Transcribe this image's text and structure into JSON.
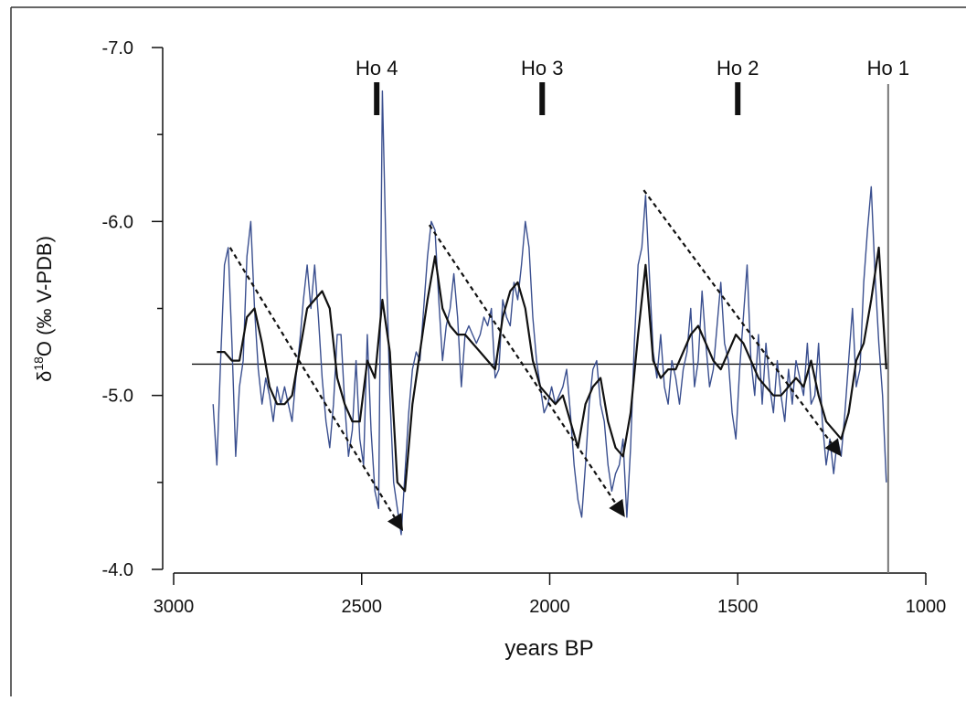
{
  "chart_data": {
    "type": "line",
    "xlabel": "years BP",
    "ylabel": "δ18O (‰ V-PDB)",
    "ylabel_parts": {
      "delta": "δ",
      "superscript": "18",
      "rest": "O (‰ V-PDB)"
    },
    "xlim": [
      3000,
      1000
    ],
    "ylim": [
      -4.0,
      -7.0
    ],
    "y_reversed": true,
    "x_ticks": [
      3000,
      2500,
      2000,
      1500,
      1000
    ],
    "x_tick_labels": [
      "3000",
      "2500",
      "2000",
      "1500",
      "1000"
    ],
    "y_ticks": [
      -4.0,
      -5.0,
      -6.0,
      -7.0
    ],
    "y_tick_labels": [
      "-4.0",
      "-5.0",
      "-6.0",
      "-7.0"
    ],
    "y_minor_ticks": [
      -4.5,
      -5.5,
      -6.5
    ],
    "grid": false,
    "legend": "none",
    "reference_line": {
      "y": -5.18
    },
    "events": [
      {
        "label": "Ho 4",
        "x": 2460
      },
      {
        "label": "Ho 3",
        "x": 2020
      },
      {
        "label": "Ho 2",
        "x": 1500
      },
      {
        "label": "Ho 1",
        "x": 1100
      }
    ],
    "trend_arrows": [
      {
        "x1": 2850,
        "y1": -5.85,
        "x2": 2390,
        "y2": -4.22
      },
      {
        "x1": 2320,
        "y1": -5.98,
        "x2": 1800,
        "y2": -4.3
      },
      {
        "x1": 1750,
        "y1": -6.18,
        "x2": 1225,
        "y2": -4.65
      }
    ],
    "series": [
      {
        "color": "#3a4f8f",
        "x": [
          2895,
          2885,
          2875,
          2865,
          2855,
          2845,
          2835,
          2825,
          2815,
          2805,
          2795,
          2785,
          2775,
          2765,
          2755,
          2745,
          2735,
          2725,
          2715,
          2705,
          2695,
          2685,
          2675,
          2665,
          2655,
          2645,
          2635,
          2625,
          2615,
          2605,
          2595,
          2585,
          2575,
          2565,
          2555,
          2545,
          2535,
          2525,
          2515,
          2505,
          2495,
          2485,
          2475,
          2465,
          2455,
          2445,
          2435,
          2425,
          2415,
          2405,
          2395,
          2385,
          2375,
          2365,
          2355,
          2345,
          2335,
          2325,
          2315,
          2305,
          2295,
          2285,
          2275,
          2265,
          2255,
          2245,
          2235,
          2225,
          2215,
          2205,
          2195,
          2185,
          2175,
          2165,
          2155,
          2145,
          2135,
          2125,
          2115,
          2105,
          2095,
          2085,
          2075,
          2065,
          2055,
          2045,
          2035,
          2025,
          2015,
          2005,
          1995,
          1985,
          1975,
          1965,
          1955,
          1945,
          1935,
          1925,
          1915,
          1905,
          1895,
          1885,
          1875,
          1865,
          1855,
          1845,
          1835,
          1825,
          1815,
          1805,
          1795,
          1785,
          1775,
          1765,
          1755,
          1745,
          1735,
          1725,
          1715,
          1705,
          1695,
          1685,
          1675,
          1665,
          1655,
          1645,
          1635,
          1625,
          1615,
          1605,
          1595,
          1585,
          1575,
          1565,
          1555,
          1545,
          1535,
          1525,
          1515,
          1505,
          1495,
          1485,
          1475,
          1465,
          1455,
          1445,
          1435,
          1425,
          1415,
          1405,
          1395,
          1385,
          1375,
          1365,
          1355,
          1345,
          1335,
          1325,
          1315,
          1305,
          1295,
          1285,
          1275,
          1265,
          1255,
          1245,
          1235,
          1225,
          1215,
          1205,
          1195,
          1185,
          1175,
          1165,
          1155,
          1145,
          1135,
          1125,
          1115,
          1105
        ],
        "y": [
          -4.95,
          -4.6,
          -5.2,
          -5.75,
          -5.85,
          -5.3,
          -4.65,
          -5.05,
          -5.2,
          -5.8,
          -6.0,
          -5.5,
          -5.15,
          -4.95,
          -5.1,
          -5.0,
          -4.85,
          -5.05,
          -4.95,
          -5.05,
          -4.95,
          -4.85,
          -5.1,
          -5.3,
          -5.55,
          -5.75,
          -5.5,
          -5.75,
          -5.45,
          -5.1,
          -4.85,
          -4.7,
          -4.95,
          -5.35,
          -5.35,
          -4.95,
          -4.65,
          -4.8,
          -5.2,
          -4.75,
          -4.6,
          -5.35,
          -4.8,
          -4.45,
          -4.35,
          -6.75,
          -5.8,
          -5.0,
          -4.5,
          -4.35,
          -4.2,
          -4.55,
          -4.9,
          -5.15,
          -5.25,
          -5.2,
          -5.5,
          -5.8,
          -6.0,
          -5.95,
          -5.55,
          -5.2,
          -5.4,
          -5.5,
          -5.7,
          -5.45,
          -5.05,
          -5.35,
          -5.4,
          -5.35,
          -5.3,
          -5.35,
          -5.45,
          -5.4,
          -5.5,
          -5.1,
          -5.15,
          -5.55,
          -5.45,
          -5.4,
          -5.65,
          -5.55,
          -5.75,
          -6.0,
          -5.85,
          -5.45,
          -5.2,
          -5.05,
          -4.9,
          -4.95,
          -5.05,
          -4.95,
          -5.0,
          -5.05,
          -5.15,
          -4.9,
          -4.6,
          -4.4,
          -4.3,
          -4.6,
          -4.95,
          -5.15,
          -5.2,
          -4.95,
          -4.85,
          -4.6,
          -4.45,
          -4.55,
          -4.6,
          -4.75,
          -4.3,
          -4.7,
          -5.3,
          -5.75,
          -5.85,
          -6.15,
          -5.7,
          -5.25,
          -5.1,
          -5.35,
          -5.05,
          -4.95,
          -5.2,
          -5.1,
          -4.95,
          -5.15,
          -5.25,
          -5.5,
          -5.05,
          -5.2,
          -5.6,
          -5.3,
          -5.05,
          -5.15,
          -5.4,
          -5.65,
          -5.3,
          -5.2,
          -4.9,
          -4.75,
          -5.15,
          -5.45,
          -5.75,
          -5.2,
          -5.0,
          -5.35,
          -4.95,
          -5.3,
          -5.05,
          -4.9,
          -5.2,
          -5.0,
          -4.85,
          -5.15,
          -4.95,
          -5.2,
          -5.1,
          -5.0,
          -5.3,
          -4.95,
          -5.0,
          -5.3,
          -4.85,
          -4.6,
          -4.75,
          -4.55,
          -4.75,
          -4.65,
          -4.9,
          -5.2,
          -5.5,
          -5.05,
          -5.15,
          -5.65,
          -5.95,
          -6.2,
          -5.7,
          -5.3,
          -5.0,
          -4.5
        ]
      },
      {
        "color": "#111111",
        "x": [
          2885,
          2865,
          2845,
          2825,
          2805,
          2785,
          2765,
          2745,
          2725,
          2705,
          2685,
          2665,
          2645,
          2625,
          2605,
          2585,
          2565,
          2545,
          2525,
          2505,
          2485,
          2465,
          2445,
          2425,
          2405,
          2385,
          2365,
          2345,
          2325,
          2305,
          2285,
          2265,
          2245,
          2225,
          2205,
          2185,
          2165,
          2145,
          2125,
          2105,
          2085,
          2065,
          2045,
          2025,
          2005,
          1985,
          1965,
          1945,
          1925,
          1905,
          1885,
          1865,
          1845,
          1825,
          1805,
          1785,
          1765,
          1745,
          1725,
          1705,
          1685,
          1665,
          1645,
          1625,
          1605,
          1585,
          1565,
          1545,
          1525,
          1505,
          1485,
          1465,
          1445,
          1425,
          1405,
          1385,
          1365,
          1345,
          1325,
          1305,
          1285,
          1265,
          1245,
          1225,
          1205,
          1185,
          1165,
          1145,
          1125,
          1105
        ],
        "y": [
          -5.25,
          -5.25,
          -5.2,
          -5.2,
          -5.45,
          -5.5,
          -5.3,
          -5.05,
          -4.95,
          -4.95,
          -5.0,
          -5.25,
          -5.5,
          -5.55,
          -5.6,
          -5.5,
          -5.1,
          -4.95,
          -4.85,
          -4.85,
          -5.2,
          -5.1,
          -5.55,
          -5.25,
          -4.5,
          -4.45,
          -4.95,
          -5.25,
          -5.55,
          -5.8,
          -5.5,
          -5.4,
          -5.35,
          -5.35,
          -5.3,
          -5.25,
          -5.2,
          -5.15,
          -5.45,
          -5.6,
          -5.65,
          -5.5,
          -5.2,
          -5.05,
          -5.0,
          -4.95,
          -5.0,
          -4.85,
          -4.7,
          -4.95,
          -5.05,
          -5.1,
          -4.85,
          -4.7,
          -4.65,
          -4.9,
          -5.35,
          -5.75,
          -5.2,
          -5.1,
          -5.15,
          -5.15,
          -5.25,
          -5.35,
          -5.4,
          -5.3,
          -5.2,
          -5.15,
          -5.25,
          -5.35,
          -5.3,
          -5.2,
          -5.1,
          -5.05,
          -5.0,
          -5.0,
          -5.05,
          -5.1,
          -5.05,
          -5.2,
          -5.0,
          -4.85,
          -4.8,
          -4.75,
          -4.9,
          -5.2,
          -5.3,
          -5.55,
          -5.85,
          -5.15
        ]
      }
    ]
  }
}
